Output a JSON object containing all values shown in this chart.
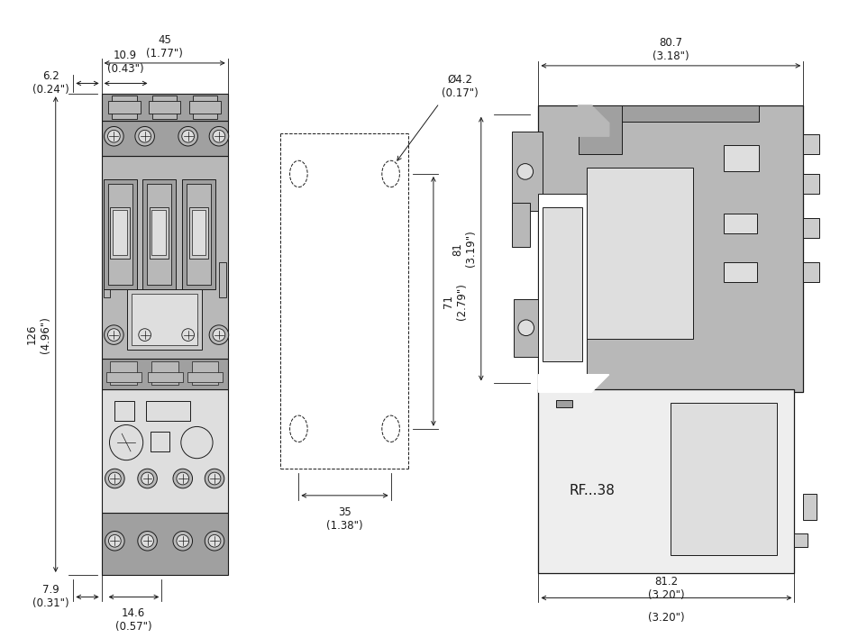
{
  "background_color": "#ffffff",
  "line_color": "#1a1a1a",
  "gray_dark": "#a0a0a0",
  "gray_mid": "#b8b8b8",
  "gray_light": "#cccccc",
  "gray_lighter": "#dedede",
  "gray_lightest": "#eeeeee",
  "dim_fontsize": 8.5,
  "label_fontsize": 11,
  "dims": {
    "top_width": "45\n(1.77\")",
    "left_offset": "6.2\n(0.24\")",
    "inner_offset": "10.9\n(0.43\")",
    "height": "126\n(4.96\")",
    "bot_left": "7.9\n(0.31\")",
    "bot_inner": "14.6\n(0.57\")",
    "mount_width": "35\n(1.38\")",
    "mount_height": "71\n(2.79\")",
    "hole_dia": "Ø4.2\n(0.17\")",
    "side_width_top": "80.7\n(3.18\")",
    "side_height": "81\n(3.19\")",
    "side_width_bot": "81.2\n(3.20\")"
  },
  "rf38_label": "RF...38"
}
